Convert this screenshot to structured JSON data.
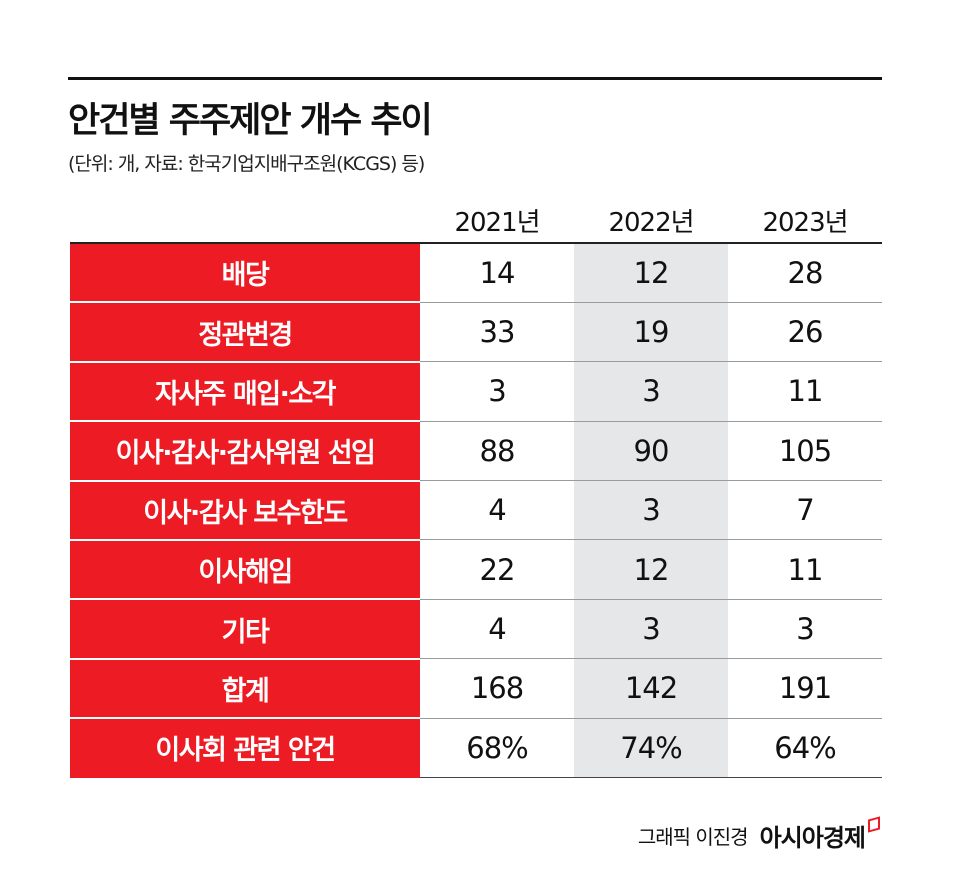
{
  "title": "안건별 주주제안 개수 추이",
  "subtitle": "(단위: 개, 자료: 한국기업지배구조원(KCGS) 등)",
  "chart_data": {
    "type": "table",
    "columns": [
      "2021년",
      "2022년",
      "2023년"
    ],
    "rows": [
      {
        "label": "배당",
        "values": [
          "14",
          "12",
          "28"
        ]
      },
      {
        "label": "정관변경",
        "values": [
          "33",
          "19",
          "26"
        ]
      },
      {
        "label": "자사주 매입·소각",
        "values": [
          "3",
          "3",
          "11"
        ]
      },
      {
        "label": "이사·감사·감사위원 선임",
        "values": [
          "88",
          "90",
          "105"
        ]
      },
      {
        "label": "이사·감사 보수한도",
        "values": [
          "4",
          "3",
          "7"
        ]
      },
      {
        "label": "이사해임",
        "values": [
          "22",
          "12",
          "11"
        ]
      },
      {
        "label": "기타",
        "values": [
          "4",
          "3",
          "3"
        ]
      },
      {
        "label": "합계",
        "values": [
          "168",
          "142",
          "191"
        ]
      },
      {
        "label": "이사회 관련 안건",
        "values": [
          "68%",
          "74%",
          "64%"
        ]
      }
    ]
  },
  "colors": {
    "label_bg": "#ed1c24",
    "highlight_col": "#e6e7e9"
  },
  "footer": {
    "credit": "그래픽 이진경",
    "logo": "아시아경제"
  }
}
